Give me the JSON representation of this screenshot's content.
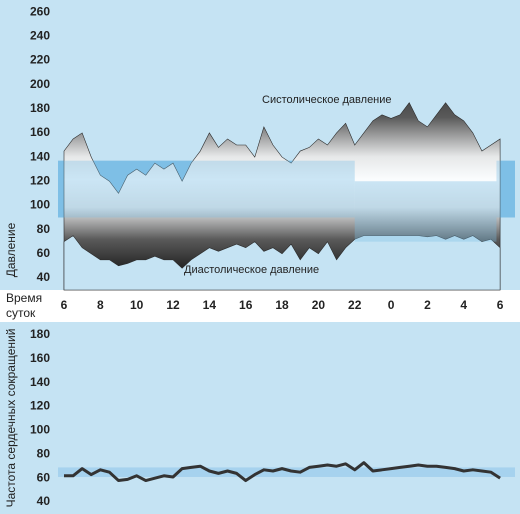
{
  "chart_data": [
    {
      "type": "range-area",
      "upper_label": "Систолическое давление",
      "lower_label": "Диастолическое давление",
      "y_label": "Давление",
      "x_label": [
        "Время",
        "суток"
      ],
      "x": [
        6,
        6.5,
        7,
        7.5,
        8,
        8.5,
        9,
        9.5,
        10,
        10.5,
        11,
        11.5,
        12,
        12.5,
        13,
        13.5,
        14,
        14.5,
        15,
        15.5,
        16,
        16.5,
        17,
        17.5,
        18,
        18.5,
        19,
        19.5,
        20,
        20.5,
        21,
        21.5,
        22,
        22.5,
        23,
        23.5,
        24,
        24.5,
        25,
        25.5,
        26,
        26.5,
        27,
        27.5,
        28,
        28.5,
        29,
        29.5,
        30
      ],
      "series": [
        {
          "color": "#2b2b2b",
          "values": [
            145,
            155,
            160,
            140,
            125,
            120,
            110,
            125,
            130,
            125,
            135,
            130,
            135,
            120,
            135,
            145,
            160,
            148,
            155,
            150,
            150,
            140,
            165,
            150,
            140,
            135,
            145,
            148,
            155,
            150,
            160,
            168,
            150,
            160,
            170,
            175,
            172,
            175,
            185,
            170,
            165,
            175,
            185,
            175,
            170,
            160,
            145,
            150,
            155
          ]
        },
        {
          "color": "#2b2b2b",
          "values": [
            70,
            75,
            65,
            60,
            55,
            55,
            50,
            52,
            55,
            55,
            58,
            55,
            55,
            48,
            55,
            60,
            65,
            62,
            65,
            68,
            65,
            70,
            62,
            65,
            60,
            68,
            55,
            65,
            60,
            70,
            55,
            65,
            72,
            75,
            75,
            75,
            75,
            75,
            75,
            75,
            74,
            75,
            72,
            75,
            72,
            75,
            70,
            72,
            65
          ]
        }
      ],
      "bands": [
        {
          "x": [
            5.67,
            22
          ],
          "y": [
            90,
            137
          ]
        },
        {
          "x": [
            22,
            29.8
          ],
          "y": [
            70,
            120
          ]
        },
        {
          "x": [
            29.8,
            30.82
          ],
          "y": [
            90,
            137
          ]
        }
      ],
      "band_color": "#7fbfe6",
      "xlim": [
        5.67,
        30.82
      ],
      "xticks": [
        6,
        8,
        10,
        12,
        14,
        16,
        18,
        20,
        22,
        {
          "value": 24,
          "label": "0"
        },
        {
          "value": 26,
          "label": "2"
        },
        {
          "value": 28,
          "label": "4"
        },
        {
          "value": 30,
          "label": "6"
        }
      ],
      "ylim": [
        30,
        270
      ],
      "yticks": [
        40,
        60,
        80,
        100,
        120,
        140,
        160,
        180,
        200,
        220,
        240,
        260
      ]
    },
    {
      "type": "line",
      "y_label": "Частота сердечных сокращений",
      "x": [
        6,
        6.5,
        7,
        7.5,
        8,
        8.5,
        9,
        9.5,
        10,
        10.5,
        11,
        11.5,
        12,
        12.5,
        13,
        13.5,
        14,
        14.5,
        15,
        15.5,
        16,
        16.5,
        17,
        17.5,
        18,
        18.5,
        19,
        19.5,
        20,
        20.5,
        21,
        21.5,
        22,
        22.5,
        23,
        23.5,
        24,
        24.5,
        25,
        25.5,
        26,
        26.5,
        27,
        27.5,
        28,
        28.5,
        29,
        29.5,
        30
      ],
      "series": [
        {
          "color": "#333333",
          "values": [
            62,
            62,
            68,
            63,
            67,
            65,
            58,
            59,
            62,
            58,
            60,
            62,
            61,
            68,
            69,
            70,
            66,
            64,
            66,
            64,
            58,
            63,
            67,
            66,
            68,
            66,
            65,
            69,
            70,
            71,
            70,
            72,
            67,
            73,
            66,
            67,
            68,
            69,
            70,
            71,
            70,
            70,
            69,
            68,
            66,
            67,
            66,
            65,
            60
          ]
        }
      ],
      "bands": [
        {
          "x": [
            5.67,
            30.82
          ],
          "y": [
            61,
            69
          ]
        }
      ],
      "band_color": "#a6d2ee",
      "xlim": [
        5.67,
        30.82
      ],
      "ylim": [
        35,
        190
      ],
      "yticks": [
        40,
        60,
        80,
        100,
        120,
        140,
        160,
        180
      ]
    }
  ]
}
